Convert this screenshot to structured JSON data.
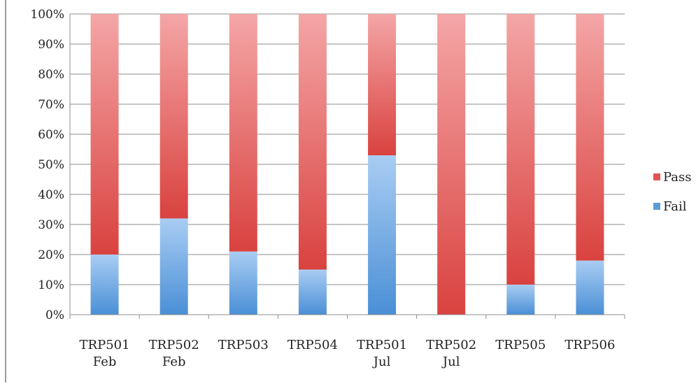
{
  "chart_data": {
    "type": "bar",
    "stacked": true,
    "categories": [
      "TRP501\nFeb",
      "TRP502\nFeb",
      "TRP503",
      "TRP504",
      "TRP501\nJul",
      "TRP502\nJul",
      "TRP505",
      "TRP506"
    ],
    "series": [
      {
        "name": "Fail",
        "color": "#5b9bd5",
        "values": [
          20,
          32,
          21,
          15,
          53,
          0,
          10,
          18
        ]
      },
      {
        "name": "Pass",
        "color": "#e05656",
        "values": [
          80,
          68,
          79,
          85,
          47,
          100,
          90,
          82
        ]
      }
    ],
    "y_tick_labels": [
      "0%",
      "10%",
      "20%",
      "30%",
      "40%",
      "50%",
      "60%",
      "70%",
      "80%",
      "90%",
      "100%"
    ],
    "ylim": [
      0,
      100
    ],
    "grid": true,
    "legend": {
      "position": "right",
      "entries": [
        "Pass",
        "Fail"
      ]
    },
    "title": "",
    "xlabel": "",
    "ylabel": ""
  }
}
